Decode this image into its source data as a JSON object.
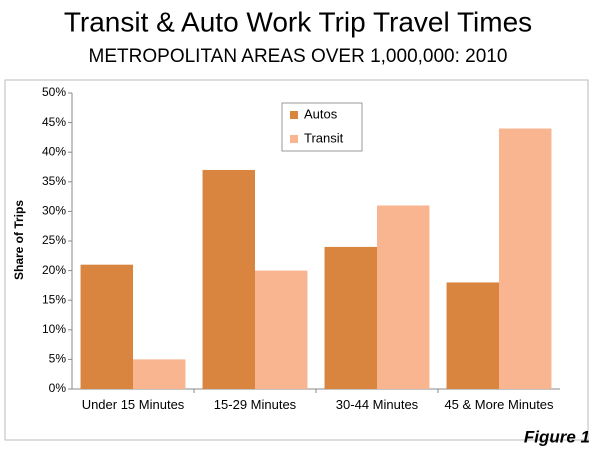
{
  "chart_data": {
    "type": "bar",
    "title": "Transit & Auto Work Trip Travel Times",
    "subtitle": "METROPOLITAN AREAS OVER 1,000,000: 2010",
    "y_label": "Share of Trips",
    "annotation": "Figure 1",
    "categories": [
      "Under 15 Minutes",
      "15-29 Minutes",
      "30-44 Minutes",
      "45 & More Minutes"
    ],
    "series": [
      {
        "name": "Autos",
        "color": "#d9843f",
        "values": [
          21,
          37,
          24,
          18
        ]
      },
      {
        "name": "Transit",
        "color": "#f8b590",
        "values": [
          5,
          20,
          31,
          44
        ]
      }
    ],
    "ylim": [
      0,
      50
    ],
    "yticks": [
      {
        "value": 0,
        "label": "0%"
      },
      {
        "value": 5,
        "label": "5%"
      },
      {
        "value": 10,
        "label": "10%"
      },
      {
        "value": 15,
        "label": "15%"
      },
      {
        "value": 20,
        "label": "20%"
      },
      {
        "value": 25,
        "label": "25%"
      },
      {
        "value": 30,
        "label": "30%"
      },
      {
        "value": 35,
        "label": "35%"
      },
      {
        "value": 40,
        "label": "40%"
      },
      {
        "value": 45,
        "label": "45%"
      },
      {
        "value": 50,
        "label": "50%"
      }
    ],
    "grid": false,
    "legend": "top-center"
  }
}
